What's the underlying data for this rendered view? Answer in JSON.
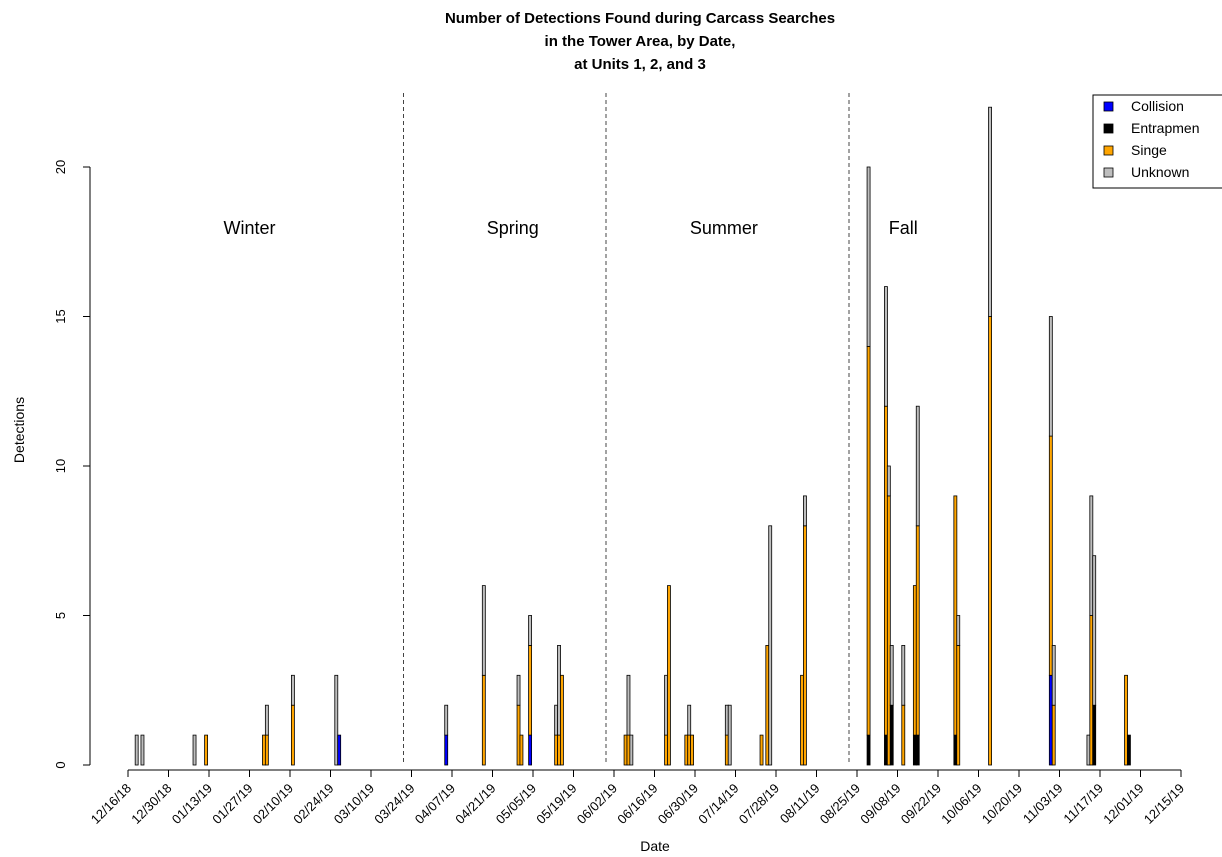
{
  "chart_data": {
    "type": "bar",
    "stacked": true,
    "title_lines": [
      "Number of Detections Found during Carcass Searches",
      "in the Tower Area, by Date,",
      "at Units 1, 2, and 3"
    ],
    "xlabel": "Date",
    "ylabel": "Detections",
    "x_ticks": [
      "12/16/18",
      "12/30/18",
      "01/13/19",
      "01/27/19",
      "02/10/19",
      "02/24/19",
      "03/10/19",
      "03/24/19",
      "04/07/19",
      "04/21/19",
      "05/05/19",
      "05/19/19",
      "06/02/19",
      "06/16/19",
      "06/30/19",
      "07/14/19",
      "07/28/19",
      "08/11/19",
      "08/25/19",
      "09/08/19",
      "09/22/19",
      "10/06/19",
      "10/20/19",
      "11/03/19",
      "11/17/19",
      "12/01/19",
      "12/15/19"
    ],
    "y_ticks": [
      0,
      5,
      10,
      15,
      20
    ],
    "ylim": [
      0,
      22.5
    ],
    "grid": false,
    "legend_position": "top-right",
    "series": [
      {
        "name": "Collision",
        "color": "#0000ff"
      },
      {
        "name": "Entrapmen",
        "color": "#000000"
      },
      {
        "name": "Singe",
        "color": "#ffa500"
      },
      {
        "name": "Unknown",
        "color": "#bebebe"
      }
    ],
    "season_dividers": [
      "03/24/19",
      "06/02/19",
      "08/25/19"
    ],
    "season_labels": [
      {
        "text": "Winter",
        "center": "01/27/19"
      },
      {
        "text": "Spring",
        "center": "04/28/19"
      },
      {
        "text": "Summer",
        "center": "07/10/19"
      },
      {
        "text": "Fall",
        "center": "09/10/19"
      }
    ],
    "bars": [
      {
        "date": "12/19/18",
        "values": [
          0,
          0,
          0,
          1
        ]
      },
      {
        "date": "12/21/18",
        "values": [
          0,
          0,
          0,
          1
        ]
      },
      {
        "date": "01/08/19",
        "values": [
          0,
          0,
          0,
          1
        ]
      },
      {
        "date": "01/12/19",
        "values": [
          0,
          0,
          1,
          0
        ]
      },
      {
        "date": "02/01/19",
        "values": [
          0,
          0,
          1,
          0
        ]
      },
      {
        "date": "02/02/19",
        "values": [
          0,
          0,
          1,
          1
        ]
      },
      {
        "date": "02/11/19",
        "values": [
          0,
          0,
          2,
          1
        ]
      },
      {
        "date": "02/26/19",
        "values": [
          0,
          0,
          0,
          3
        ]
      },
      {
        "date": "02/27/19",
        "values": [
          1,
          0,
          0,
          0
        ]
      },
      {
        "date": "04/05/19",
        "values": [
          1,
          0,
          0,
          1
        ]
      },
      {
        "date": "04/18/19",
        "values": [
          0,
          0,
          3,
          3
        ]
      },
      {
        "date": "04/30/19",
        "values": [
          0,
          0,
          2,
          1
        ]
      },
      {
        "date": "05/01/19",
        "values": [
          0,
          0,
          1,
          0
        ]
      },
      {
        "date": "05/04/19",
        "values": [
          1,
          0,
          3,
          1
        ]
      },
      {
        "date": "05/13/19",
        "values": [
          0,
          0,
          1,
          1
        ]
      },
      {
        "date": "05/14/19",
        "values": [
          0,
          0,
          1,
          3
        ]
      },
      {
        "date": "05/15/19",
        "values": [
          0,
          0,
          3,
          0
        ]
      },
      {
        "date": "06/06/19",
        "values": [
          0,
          0,
          1,
          0
        ]
      },
      {
        "date": "06/07/19",
        "values": [
          0,
          0,
          1,
          2
        ]
      },
      {
        "date": "06/08/19",
        "values": [
          0,
          0,
          0,
          1
        ]
      },
      {
        "date": "06/20/19",
        "values": [
          0,
          0,
          1,
          2
        ]
      },
      {
        "date": "06/21/19",
        "values": [
          0,
          0,
          6,
          0
        ]
      },
      {
        "date": "06/27/19",
        "values": [
          0,
          0,
          1,
          0
        ]
      },
      {
        "date": "06/28/19",
        "values": [
          0,
          0,
          1,
          1
        ]
      },
      {
        "date": "06/29/19",
        "values": [
          0,
          0,
          1,
          0
        ]
      },
      {
        "date": "07/11/19",
        "values": [
          0,
          0,
          1,
          1
        ]
      },
      {
        "date": "07/12/19",
        "values": [
          0,
          0,
          0,
          2
        ]
      },
      {
        "date": "07/23/19",
        "values": [
          0,
          0,
          1,
          0
        ]
      },
      {
        "date": "07/25/19",
        "values": [
          0,
          0,
          4,
          0
        ]
      },
      {
        "date": "07/26/19",
        "values": [
          0,
          0,
          0,
          8
        ]
      },
      {
        "date": "08/06/19",
        "values": [
          0,
          0,
          3,
          0
        ]
      },
      {
        "date": "08/07/19",
        "values": [
          0,
          0,
          8,
          1
        ]
      },
      {
        "date": "08/29/19",
        "values": [
          0,
          1,
          13,
          6
        ]
      },
      {
        "date": "09/04/19",
        "values": [
          0,
          1,
          11,
          4
        ]
      },
      {
        "date": "09/05/19",
        "values": [
          0,
          0,
          9,
          1
        ]
      },
      {
        "date": "09/06/19",
        "values": [
          0,
          2,
          0,
          2
        ]
      },
      {
        "date": "09/10/19",
        "values": [
          0,
          0,
          2,
          2
        ]
      },
      {
        "date": "09/14/19",
        "values": [
          0,
          1,
          5,
          0
        ]
      },
      {
        "date": "09/15/19",
        "values": [
          0,
          1,
          7,
          4
        ]
      },
      {
        "date": "09/28/19",
        "values": [
          0,
          1,
          8,
          0
        ]
      },
      {
        "date": "09/29/19",
        "values": [
          0,
          0,
          4,
          1
        ]
      },
      {
        "date": "10/10/19",
        "values": [
          0,
          0,
          15,
          7
        ]
      },
      {
        "date": "10/31/19",
        "values": [
          3,
          0,
          8,
          4
        ]
      },
      {
        "date": "11/01/19",
        "values": [
          0,
          0,
          2,
          2
        ]
      },
      {
        "date": "11/13/19",
        "values": [
          0,
          0,
          0,
          1
        ]
      },
      {
        "date": "11/14/19",
        "values": [
          0,
          0,
          5,
          4
        ]
      },
      {
        "date": "11/15/19",
        "values": [
          0,
          2,
          0,
          5
        ]
      },
      {
        "date": "11/26/19",
        "values": [
          0,
          0,
          3,
          0
        ]
      },
      {
        "date": "11/27/19",
        "values": [
          0,
          1,
          0,
          0
        ]
      }
    ]
  }
}
